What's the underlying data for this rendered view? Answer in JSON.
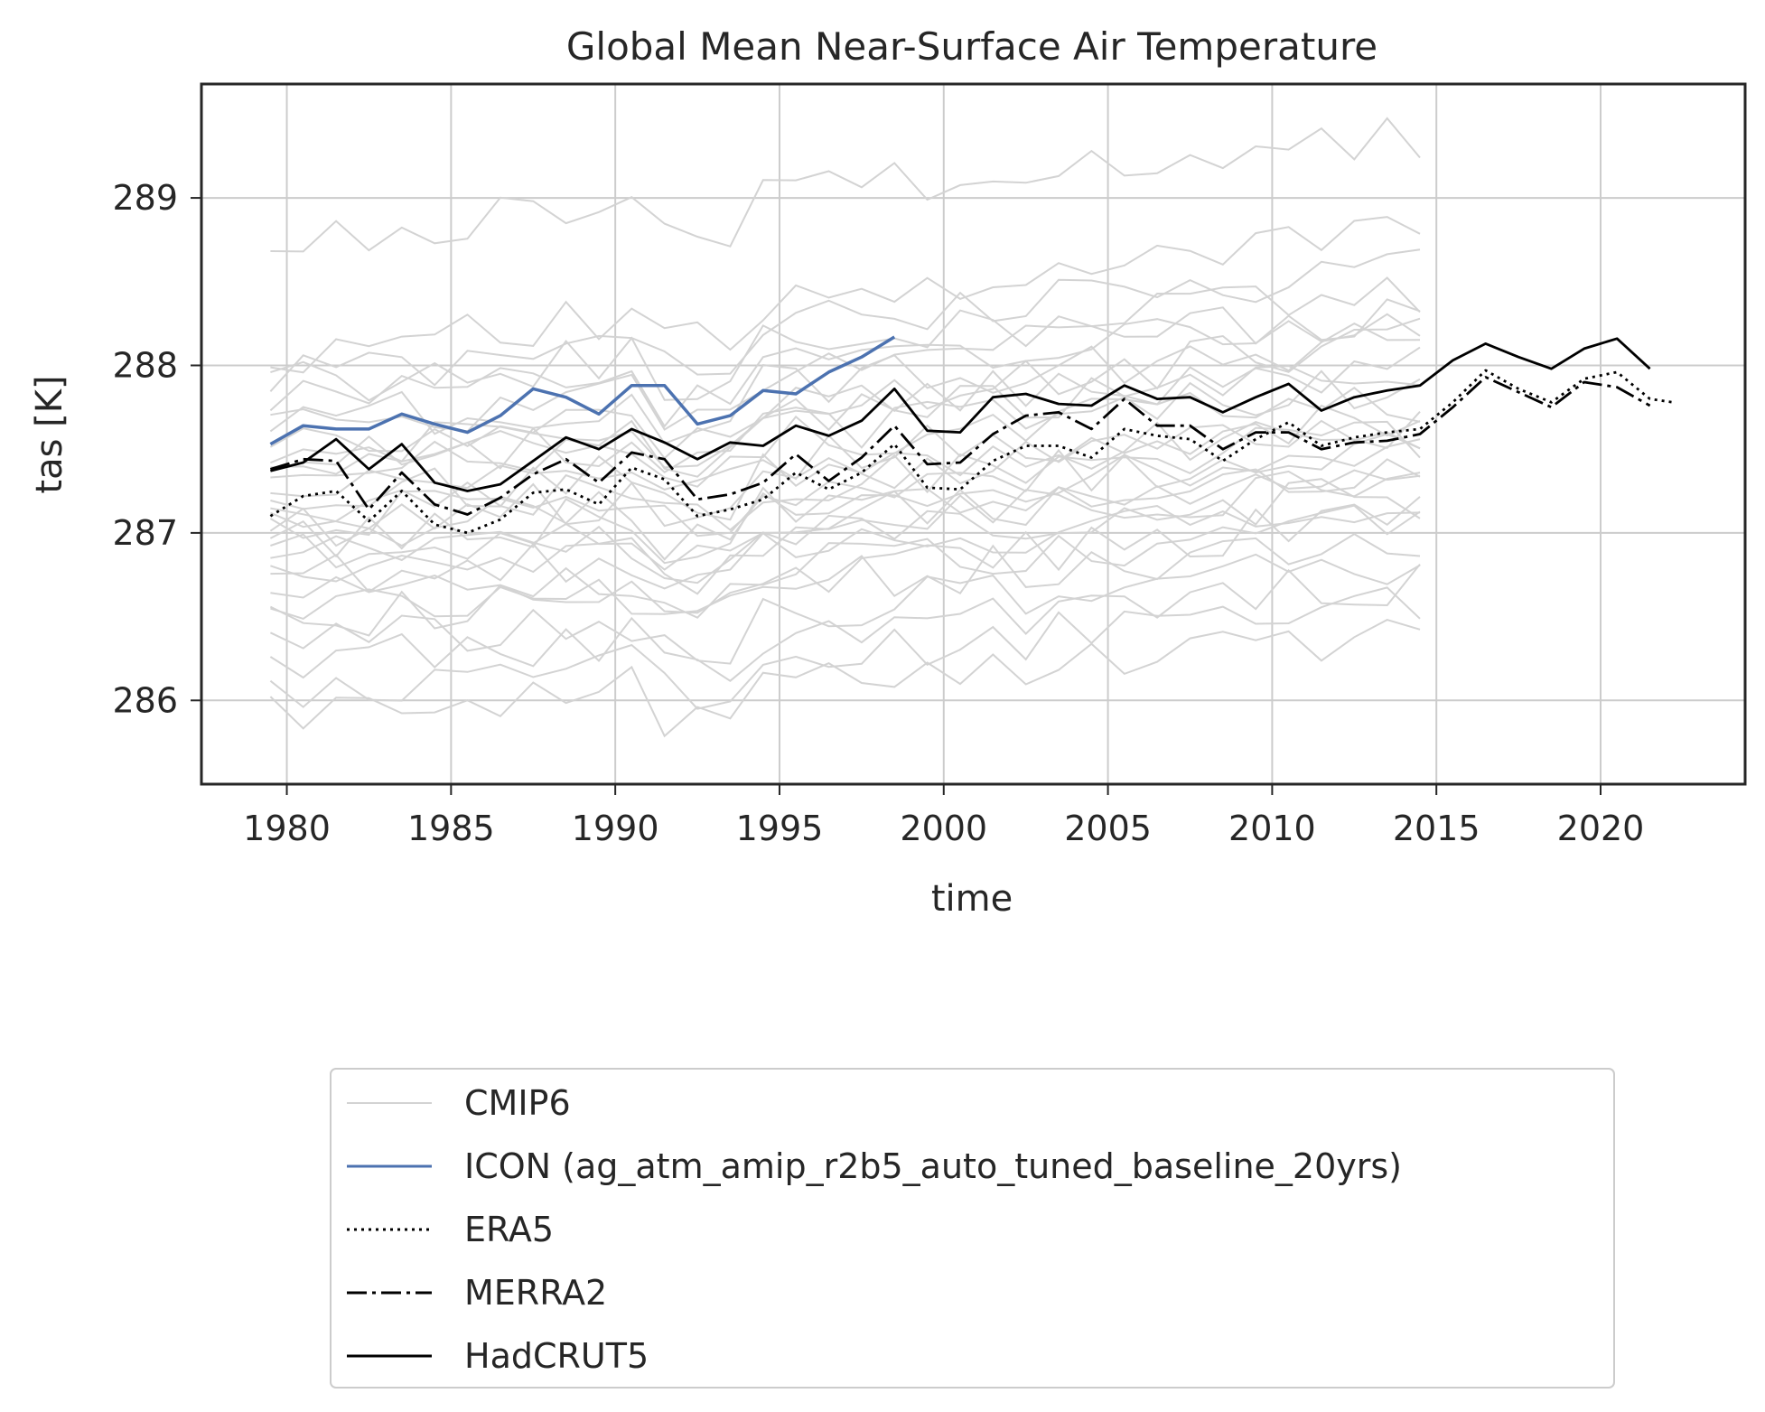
{
  "chart_data": {
    "type": "line",
    "title": "Global Mean Near-Surface Air Temperature",
    "xlabel": "time",
    "ylabel": "tas [K]",
    "xlim": [
      1977.4,
      2024.4
    ],
    "ylim": [
      285.5,
      289.68
    ],
    "grid": true,
    "legend_placement": "below plot",
    "xticks": [
      1980,
      1985,
      1990,
      1995,
      2000,
      2005,
      2010,
      2015,
      2020
    ],
    "yticks": [
      286,
      287,
      288,
      289
    ],
    "colors": {
      "cmip6": "#d3d3d3",
      "icon": "#4c72b0",
      "obs": "#000000",
      "grid": "#cccccc",
      "frame": "#262626"
    },
    "series": [
      {
        "name": "ICON (ag_atm_amip_r2b5_auto_tuned_baseline_20yrs)",
        "style": "solid",
        "x": [
          1979.5,
          1980.5,
          1981.5,
          1982.5,
          1983.5,
          1984.5,
          1985.5,
          1986.5,
          1987.5,
          1988.5,
          1989.5,
          1990.5,
          1991.5,
          1992.5,
          1993.5,
          1994.5,
          1995.5,
          1996.5,
          1997.5,
          1998.5
        ],
        "y": [
          287.53,
          287.64,
          287.62,
          287.62,
          287.71,
          287.65,
          287.6,
          287.7,
          287.86,
          287.81,
          287.71,
          287.88,
          287.88,
          287.65,
          287.7,
          287.85,
          287.83,
          287.96,
          288.05,
          288.17
        ]
      },
      {
        "name": "ERA5",
        "style": "dotted",
        "x": [
          1979.5,
          1980.5,
          1981.5,
          1982.5,
          1983.5,
          1984.5,
          1985.5,
          1986.5,
          1987.5,
          1988.5,
          1989.5,
          1990.5,
          1991.5,
          1992.5,
          1993.5,
          1994.5,
          1995.5,
          1996.5,
          1997.5,
          1998.5,
          1999.5,
          2000.5,
          2001.5,
          2002.5,
          2003.5,
          2004.5,
          2005.5,
          2006.5,
          2007.5,
          2008.5,
          2009.5,
          2010.5,
          2011.5,
          2012.5,
          2013.5,
          2014.5,
          2015.5,
          2016.5,
          2017.5,
          2018.5,
          2019.5,
          2020.5,
          2021.5,
          2022.2
        ],
        "y": [
          287.1,
          287.22,
          287.25,
          287.07,
          287.25,
          287.05,
          287.0,
          287.08,
          287.24,
          287.26,
          287.17,
          287.39,
          287.32,
          287.1,
          287.14,
          287.2,
          287.36,
          287.26,
          287.36,
          287.53,
          287.27,
          287.26,
          287.43,
          287.52,
          287.52,
          287.45,
          287.62,
          287.58,
          287.56,
          287.43,
          287.56,
          287.66,
          287.52,
          287.57,
          287.6,
          287.62,
          287.78,
          287.97,
          287.86,
          287.78,
          287.92,
          287.96,
          287.8,
          287.78
        ]
      },
      {
        "name": "MERRA2",
        "style": "dashdot",
        "x": [
          1979.5,
          1980.5,
          1981.5,
          1982.5,
          1983.5,
          1984.5,
          1985.5,
          1986.5,
          1987.5,
          1988.5,
          1989.5,
          1990.5,
          1991.5,
          1992.5,
          1993.5,
          1994.5,
          1995.5,
          1996.5,
          1997.5,
          1998.5,
          1999.5,
          2000.5,
          2001.5,
          2002.5,
          2003.5,
          2004.5,
          2005.5,
          2006.5,
          2007.5,
          2008.5,
          2009.5,
          2010.5,
          2011.5,
          2012.5,
          2013.5,
          2014.5,
          2015.5,
          2016.5,
          2017.5,
          2018.5,
          2019.5,
          2020.5,
          2021.5
        ],
        "y": [
          287.38,
          287.44,
          287.43,
          287.14,
          287.36,
          287.17,
          287.11,
          287.21,
          287.35,
          287.44,
          287.3,
          287.48,
          287.44,
          287.2,
          287.23,
          287.3,
          287.47,
          287.31,
          287.45,
          287.64,
          287.41,
          287.42,
          287.59,
          287.7,
          287.72,
          287.62,
          287.8,
          287.64,
          287.64,
          287.5,
          287.6,
          287.6,
          287.5,
          287.54,
          287.55,
          287.59,
          287.75,
          287.93,
          287.84,
          287.75,
          287.9,
          287.87,
          287.76
        ]
      },
      {
        "name": "HadCRUT5",
        "style": "solid",
        "x": [
          1979.5,
          1980.5,
          1981.5,
          1982.5,
          1983.5,
          1984.5,
          1985.5,
          1986.5,
          1987.5,
          1988.5,
          1989.5,
          1990.5,
          1991.5,
          1992.5,
          1993.5,
          1994.5,
          1995.5,
          1996.5,
          1997.5,
          1998.5,
          1999.5,
          2000.5,
          2001.5,
          2002.5,
          2003.5,
          2004.5,
          2005.5,
          2006.5,
          2007.5,
          2008.5,
          2009.5,
          2010.5,
          2011.5,
          2012.5,
          2013.5,
          2014.5,
          2015.5,
          2016.5,
          2017.5,
          2018.5,
          2019.5,
          2020.5,
          2021.5
        ],
        "y": [
          287.37,
          287.42,
          287.56,
          287.38,
          287.53,
          287.3,
          287.25,
          287.29,
          287.43,
          287.57,
          287.5,
          287.62,
          287.54,
          287.44,
          287.54,
          287.52,
          287.64,
          287.58,
          287.67,
          287.86,
          287.61,
          287.6,
          287.81,
          287.83,
          287.77,
          287.76,
          287.88,
          287.8,
          287.81,
          287.72,
          287.81,
          287.89,
          287.73,
          287.81,
          287.85,
          287.88,
          288.03,
          288.13,
          288.05,
          287.98,
          288.1,
          288.16,
          287.98
        ]
      }
    ],
    "cmip6": {
      "name": "CMIP6",
      "note": "ensemble of model runs (1979.5-2014.5)",
      "x_start": 1979.5,
      "x_end": 2014.5,
      "members": [
        {
          "start": 288.75,
          "end": 289.38
        },
        {
          "start": 288.05,
          "end": 288.82
        },
        {
          "start": 287.9,
          "end": 288.62
        },
        {
          "start": 287.78,
          "end": 288.28
        },
        {
          "start": 287.65,
          "end": 288.15
        },
        {
          "start": 287.55,
          "end": 288.0
        },
        {
          "start": 287.45,
          "end": 287.95
        },
        {
          "start": 287.4,
          "end": 287.88
        },
        {
          "start": 287.35,
          "end": 287.8
        },
        {
          "start": 287.25,
          "end": 287.7
        },
        {
          "start": 287.2,
          "end": 287.65
        },
        {
          "start": 287.12,
          "end": 287.55
        },
        {
          "start": 287.08,
          "end": 287.5
        },
        {
          "start": 287.0,
          "end": 287.45
        },
        {
          "start": 286.95,
          "end": 287.4
        },
        {
          "start": 286.9,
          "end": 287.3
        },
        {
          "start": 286.82,
          "end": 287.22
        },
        {
          "start": 286.72,
          "end": 287.15
        },
        {
          "start": 286.6,
          "end": 287.05
        },
        {
          "start": 286.5,
          "end": 286.96
        },
        {
          "start": 286.35,
          "end": 286.8
        },
        {
          "start": 286.2,
          "end": 286.7
        },
        {
          "start": 286.05,
          "end": 286.55
        },
        {
          "start": 285.95,
          "end": 286.38
        },
        {
          "start": 287.88,
          "end": 288.45
        },
        {
          "start": 287.62,
          "end": 288.35
        },
        {
          "start": 287.3,
          "end": 288.2
        },
        {
          "start": 287.05,
          "end": 287.6
        },
        {
          "start": 286.7,
          "end": 287.35
        },
        {
          "start": 286.45,
          "end": 287.1
        }
      ]
    }
  }
}
